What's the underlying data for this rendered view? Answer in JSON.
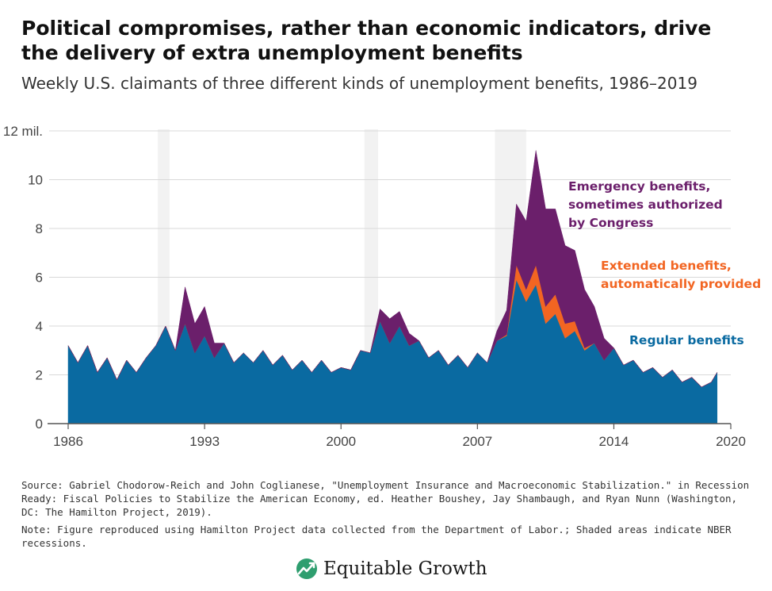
{
  "title": "Political compromises, rather than economic indicators, drive the delivery of extra unemployment benefits",
  "subtitle": "Weekly U.S. claimants of three different kinds of unemployment benefits, 1986–2019",
  "source": "Source: Gabriel Chodorow-Reich and John Coglianese, \"Unemployment Insurance and Macroeconomic Stabilization.\" in Recession Ready: Fiscal Policies to Stabilize the American Economy, ed. Heather Boushey, Jay Shambaugh, and Ryan Nunn (Washington, DC: The Hamilton Project, 2019).",
  "note": "Note: Figure reproduced using Hamilton Project data collected from the Department of Labor.; Shaded areas indicate NBER recessions.",
  "brand": {
    "name": "Equitable Growth",
    "icon": "growth-chart-logo-icon"
  },
  "colors": {
    "regular": "#0a6aa1",
    "extended": "#f26522",
    "emergency": "#6b1f6b",
    "recession_shade": "#f2f2f2",
    "axis": "#555555",
    "gridline": "#d9d9d9"
  },
  "chart_data": {
    "type": "area",
    "stacked": true,
    "unit": "millions of claimants",
    "xlim": [
      1986,
      2020
    ],
    "ylim": [
      0,
      12
    ],
    "x_ticks": [
      "1986",
      "1993",
      "2000",
      "2007",
      "2014",
      "2020"
    ],
    "y_ticks": [
      "0",
      "2",
      "4",
      "6",
      "8",
      "10",
      "12 mil."
    ],
    "grid": true,
    "recessions": [
      [
        1990.6,
        1991.2
      ],
      [
        2001.2,
        2001.9
      ],
      [
        2007.9,
        2009.5
      ]
    ],
    "x": [
      1986.0,
      1986.5,
      1987.0,
      1987.5,
      1988.0,
      1988.5,
      1989.0,
      1989.5,
      1990.0,
      1990.5,
      1991.0,
      1991.5,
      1992.0,
      1992.5,
      1993.0,
      1993.5,
      1994.0,
      1994.5,
      1995.0,
      1995.5,
      1996.0,
      1996.5,
      1997.0,
      1997.5,
      1998.0,
      1998.5,
      1999.0,
      1999.5,
      2000.0,
      2000.5,
      2001.0,
      2001.5,
      2002.0,
      2002.5,
      2003.0,
      2003.5,
      2004.0,
      2004.5,
      2005.0,
      2005.5,
      2006.0,
      2006.5,
      2007.0,
      2007.5,
      2008.0,
      2008.5,
      2009.0,
      2009.5,
      2010.0,
      2010.5,
      2011.0,
      2011.5,
      2012.0,
      2012.5,
      2013.0,
      2013.5,
      2014.0,
      2014.5,
      2015.0,
      2015.5,
      2016.0,
      2016.5,
      2017.0,
      2017.5,
      2018.0,
      2018.5,
      2019.0,
      2019.3
    ],
    "series": [
      {
        "name": "Regular benefits",
        "values": [
          3.2,
          2.5,
          3.2,
          2.1,
          2.7,
          1.8,
          2.6,
          2.1,
          2.7,
          3.2,
          4.0,
          3.0,
          4.1,
          2.9,
          3.6,
          2.7,
          3.3,
          2.5,
          2.9,
          2.5,
          3.0,
          2.4,
          2.8,
          2.2,
          2.6,
          2.1,
          2.6,
          2.1,
          2.3,
          2.2,
          3.0,
          2.9,
          4.2,
          3.3,
          4.0,
          3.2,
          3.4,
          2.7,
          3.0,
          2.4,
          2.8,
          2.3,
          2.9,
          2.5,
          3.4,
          3.6,
          5.9,
          5.0,
          5.7,
          4.1,
          4.5,
          3.5,
          3.8,
          3.0,
          3.3,
          2.6,
          3.1,
          2.4,
          2.6,
          2.1,
          2.3,
          1.9,
          2.2,
          1.7,
          1.9,
          1.5,
          1.7,
          2.1
        ]
      },
      {
        "name": "Extended benefits",
        "values": [
          0,
          0,
          0,
          0,
          0,
          0,
          0,
          0,
          0,
          0,
          0,
          0,
          0,
          0,
          0,
          0,
          0,
          0,
          0,
          0,
          0,
          0,
          0,
          0,
          0,
          0,
          0,
          0,
          0,
          0,
          0,
          0,
          0,
          0,
          0,
          0,
          0,
          0,
          0,
          0,
          0,
          0,
          0,
          0,
          0,
          0.05,
          0.6,
          0.5,
          0.8,
          0.7,
          0.8,
          0.6,
          0.4,
          0.1,
          0,
          0,
          0,
          0,
          0,
          0,
          0,
          0,
          0,
          0,
          0,
          0,
          0,
          0
        ]
      },
      {
        "name": "Emergency benefits",
        "values": [
          0,
          0,
          0,
          0,
          0,
          0,
          0,
          0,
          0,
          0,
          0,
          0,
          1.5,
          1.2,
          1.2,
          0.6,
          0,
          0,
          0,
          0,
          0,
          0,
          0,
          0,
          0,
          0,
          0,
          0,
          0,
          0,
          0,
          0,
          0.5,
          1.0,
          0.6,
          0.5,
          0,
          0,
          0,
          0,
          0,
          0,
          0,
          0,
          0.4,
          1.0,
          2.5,
          2.8,
          4.7,
          4.0,
          3.5,
          3.2,
          2.9,
          2.4,
          1.5,
          0.9,
          0,
          0,
          0,
          0,
          0,
          0,
          0,
          0,
          0,
          0,
          0,
          0
        ]
      }
    ],
    "annotations": [
      {
        "text": "Emergency benefits,",
        "series": 2
      },
      {
        "text": "sometimes authorized",
        "series": 2
      },
      {
        "text": "by Congress",
        "series": 2
      },
      {
        "text": "Extended benefits,",
        "series": 1
      },
      {
        "text": "automatically provided",
        "series": 1
      },
      {
        "text": "Regular benefits",
        "series": 0
      }
    ]
  }
}
